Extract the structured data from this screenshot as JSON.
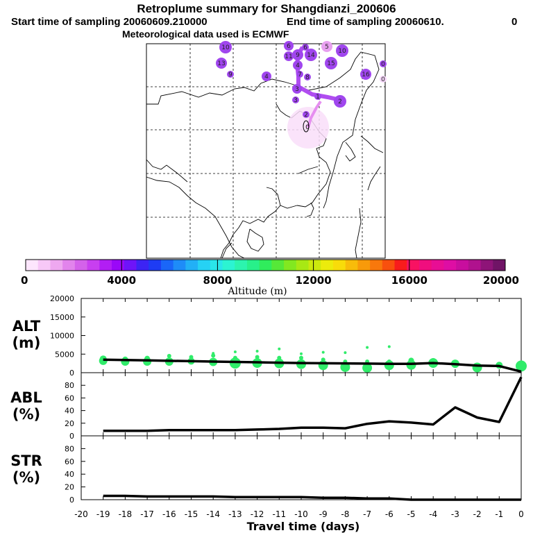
{
  "header": {
    "title": "Retroplume summary for Shangdianzi_200606",
    "start_label": "Start time of sampling 20060609.210000",
    "end_label": "End time of sampling 20060610.",
    "end_trail": "0",
    "met_label": "Meteorological data used is ECMWF"
  },
  "colorbar": {
    "title": "Altitude (m)",
    "tick_labels": [
      "0",
      "4000",
      "8000",
      "12000",
      "16000",
      "20000"
    ],
    "min": 0,
    "max": 20000,
    "colors": [
      "#fde6fd",
      "#f7c8f7",
      "#eea8f0",
      "#e284ec",
      "#d462ea",
      "#c83ff0",
      "#b21ef4",
      "#9a08f8",
      "#6e14f8",
      "#3c24f4",
      "#1e3cf4",
      "#1a66f8",
      "#1e8cf8",
      "#22b0f6",
      "#26d2f4",
      "#2ae6ea",
      "#2cf4d2",
      "#2cf4ae",
      "#28f08a",
      "#30ec5c",
      "#56e838",
      "#82e820",
      "#a8e814",
      "#cce80e",
      "#eceb0c",
      "#f8dc0a",
      "#f8bc0a",
      "#f89a0a",
      "#f8780c",
      "#f8500e",
      "#f81c1c",
      "#f81262",
      "#f00e7e",
      "#e80e94",
      "#de0ea4",
      "#c80e9e",
      "#b0128e",
      "#8e1478",
      "#701466"
    ]
  },
  "map": {
    "labels": [
      {
        "t": "10",
        "c": "#a046ee"
      },
      {
        "t": "6",
        "c": "#a046ee"
      },
      {
        "t": "5",
        "c": "#e8a0f0"
      },
      {
        "t": "10",
        "c": "#a046ee"
      },
      {
        "t": "13",
        "c": "#a046ee"
      },
      {
        "t": "9",
        "c": "#a046ee"
      },
      {
        "t": "15",
        "c": "#a046ee"
      },
      {
        "t": "16",
        "c": "#a046ee"
      },
      {
        "t": "11",
        "c": "#a046ee"
      },
      {
        "t": "14",
        "c": "#a046ee"
      },
      {
        "t": "9",
        "c": "#a046ee"
      },
      {
        "t": "6",
        "c": "#a046ee"
      },
      {
        "t": "4",
        "c": "#a046ee"
      },
      {
        "t": "7",
        "c": "#a046ee"
      },
      {
        "t": "4",
        "c": "#a046ee"
      },
      {
        "t": "8",
        "c": "#a046ee"
      },
      {
        "t": "3",
        "c": "#a046ee"
      },
      {
        "t": "1",
        "c": "#a046ee"
      },
      {
        "t": "2",
        "c": "#a046ee"
      },
      {
        "t": "3",
        "c": "#a046ee"
      },
      {
        "t": "0",
        "c": "#a046ee"
      },
      {
        "t": "0",
        "c": "#f4d4f8"
      },
      {
        "t": "2",
        "c": "#a046ee"
      }
    ],
    "station_label": "0"
  },
  "chart_data": [
    {
      "type": "line",
      "label": "ALT\n(m)",
      "label_line1": "ALT",
      "label_line2": "(m)",
      "x": [
        -19,
        -18,
        -17,
        -16,
        -15,
        -14,
        -13,
        -12,
        -11,
        -10,
        -9,
        -8,
        -7,
        -6,
        -5,
        -4,
        -3,
        -2,
        -1,
        0
      ],
      "values": [
        3500,
        3400,
        3300,
        3200,
        3100,
        3000,
        2900,
        2800,
        2700,
        2600,
        2550,
        2500,
        2450,
        2400,
        2400,
        2600,
        2300,
        1900,
        1800,
        300
      ],
      "scatter": [
        {
          "x": -19,
          "ys": [
            3200,
            3700
          ],
          "s": [
            6,
            5
          ]
        },
        {
          "x": -18,
          "ys": [
            3000,
            3600
          ],
          "s": [
            6,
            4
          ]
        },
        {
          "x": -17,
          "ys": [
            3000,
            3800
          ],
          "s": [
            6,
            4
          ]
        },
        {
          "x": -16,
          "ys": [
            3000,
            4500
          ],
          "s": [
            6,
            3
          ]
        },
        {
          "x": -15,
          "ys": [
            3100,
            4200
          ],
          "s": [
            5,
            3
          ]
        },
        {
          "x": -14,
          "ys": [
            2900,
            4600,
            5200
          ],
          "s": [
            6,
            3,
            2
          ]
        },
        {
          "x": -13,
          "ys": [
            2600,
            4000,
            5600
          ],
          "s": [
            8,
            3,
            2
          ]
        },
        {
          "x": -12,
          "ys": [
            2600,
            4200,
            5800
          ],
          "s": [
            7,
            3,
            2
          ]
        },
        {
          "x": -11,
          "ys": [
            2500,
            4000,
            6400
          ],
          "s": [
            7,
            3,
            2
          ]
        },
        {
          "x": -10,
          "ys": [
            2300,
            4000,
            5100
          ],
          "s": [
            7,
            3,
            2
          ]
        },
        {
          "x": -9,
          "ys": [
            2000,
            3500,
            5500
          ],
          "s": [
            7,
            3,
            2
          ]
        },
        {
          "x": -8,
          "ys": [
            1500,
            3000,
            5400
          ],
          "s": [
            7,
            3,
            2
          ]
        },
        {
          "x": -7,
          "ys": [
            1300,
            3000,
            6800
          ],
          "s": [
            7,
            3,
            2
          ]
        },
        {
          "x": -6,
          "ys": [
            2000,
            3000,
            7000
          ],
          "s": [
            7,
            3,
            2
          ]
        },
        {
          "x": -5,
          "ys": [
            2100,
            3300
          ],
          "s": [
            7,
            4
          ]
        },
        {
          "x": -4,
          "ys": [
            2600,
            3200
          ],
          "s": [
            7,
            4
          ]
        },
        {
          "x": -3,
          "ys": [
            2400
          ],
          "s": [
            6
          ]
        },
        {
          "x": -2,
          "ys": [
            1400
          ],
          "s": [
            7
          ]
        },
        {
          "x": -1,
          "ys": [
            2000
          ],
          "s": [
            5
          ]
        },
        {
          "x": 0,
          "ys": [
            1800
          ],
          "s": [
            8
          ]
        }
      ],
      "yticks": [
        "0",
        "5000",
        "10000",
        "15000",
        "20000"
      ],
      "ylim": [
        0,
        20000
      ]
    },
    {
      "type": "line",
      "label_line1": "ABL",
      "label_line2": "(%)",
      "x": [
        -19,
        -18,
        -17,
        -16,
        -15,
        -14,
        -13,
        -12,
        -11,
        -10,
        -9,
        -8,
        -7,
        -6,
        -5,
        -4,
        -3,
        -2,
        -1,
        0
      ],
      "values": [
        8,
        8,
        8,
        9,
        9,
        9,
        9,
        10,
        11,
        13,
        13,
        12,
        19,
        23,
        21,
        18,
        45,
        29,
        22,
        93
      ],
      "yticks": [
        "0",
        "20",
        "40",
        "60",
        "80"
      ],
      "ylim": [
        0,
        100
      ]
    },
    {
      "type": "line",
      "label_line1": "STR",
      "label_line2": "(%)",
      "x": [
        -19,
        -18,
        -17,
        -16,
        -15,
        -14,
        -13,
        -12,
        -11,
        -10,
        -9,
        -8,
        -7,
        -6,
        -5,
        -4,
        -3,
        -2,
        -1,
        0
      ],
      "values": [
        6,
        6,
        5,
        5,
        5,
        5,
        4,
        4,
        4,
        4,
        3,
        3,
        2,
        2,
        0,
        0,
        0,
        0,
        0,
        0
      ],
      "yticks": [
        "0",
        "20",
        "40",
        "60",
        "80"
      ],
      "ylim": [
        0,
        100
      ]
    }
  ],
  "xaxis": {
    "tick_labels": [
      "-20",
      "-19",
      "-18",
      "-17",
      "-16",
      "-15",
      "-14",
      "-13",
      "-12",
      "-11",
      "-10",
      "-9",
      "-8",
      "-7",
      "-6",
      "-5",
      "-4",
      "-3",
      "-2",
      "-1",
      "0"
    ],
    "xlabel": "Travel time (days)",
    "xlim": [
      -20,
      0
    ]
  }
}
